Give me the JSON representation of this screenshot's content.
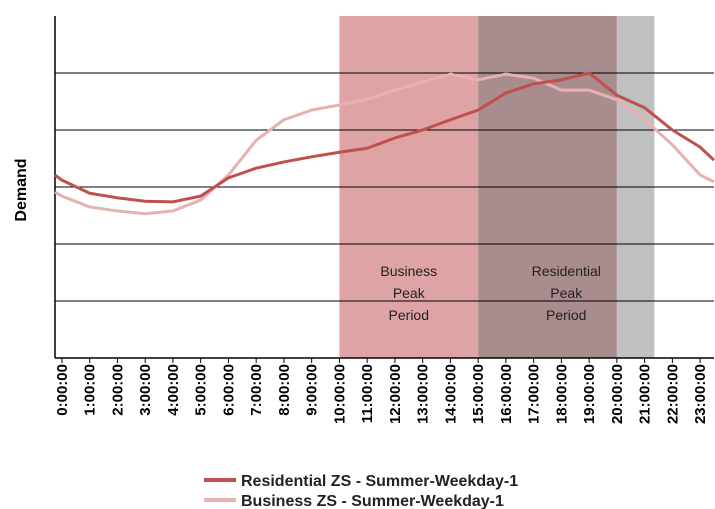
{
  "chart_data": {
    "type": "line",
    "y_label": "Demand",
    "xlim": [
      -0.25,
      23.5
    ],
    "ylim": [
      0,
      6
    ],
    "y_gridlines": [
      1,
      2,
      3,
      4,
      5
    ],
    "grid": true,
    "legend": "bottom",
    "xticks": [
      {
        "value": 0,
        "label": "0:00:00"
      },
      {
        "value": 1,
        "label": "1:00:00"
      },
      {
        "value": 2,
        "label": "2:00:00"
      },
      {
        "value": 3,
        "label": "3:00:00"
      },
      {
        "value": 4,
        "label": "4:00:00"
      },
      {
        "value": 5,
        "label": "5:00:00"
      },
      {
        "value": 6,
        "label": "6:00:00"
      },
      {
        "value": 7,
        "label": "7:00:00"
      },
      {
        "value": 8,
        "label": "8:00:00"
      },
      {
        "value": 9,
        "label": "9:00:00"
      },
      {
        "value": 10,
        "label": "10:00:00"
      },
      {
        "value": 11,
        "label": "11:00:00"
      },
      {
        "value": 12,
        "label": "12:00:00"
      },
      {
        "value": 13,
        "label": "13:00:00"
      },
      {
        "value": 14,
        "label": "14:00:00"
      },
      {
        "value": 15,
        "label": "15:00:00"
      },
      {
        "value": 16,
        "label": "16:00:00"
      },
      {
        "value": 17,
        "label": "17:00:00"
      },
      {
        "value": 18,
        "label": "18:00:00"
      },
      {
        "value": 19,
        "label": "19:00:00"
      },
      {
        "value": 20,
        "label": "20:00:00"
      },
      {
        "value": 21,
        "label": "21:00:00"
      },
      {
        "value": 22,
        "label": "22:00:00"
      },
      {
        "value": 23,
        "label": "23:00:00"
      }
    ],
    "bands": [
      {
        "start": 10,
        "end": 15,
        "color": "#dea3a4",
        "label": [
          "Business",
          "Peak",
          "Period"
        ]
      },
      {
        "start": 15,
        "end": 20,
        "color": "#a98c8d",
        "label": [
          "Residential",
          "Peak",
          "Period"
        ]
      },
      {
        "start": 20,
        "end": 21.35,
        "color": "#c0c0c0"
      }
    ],
    "x": [
      -0.25,
      0,
      1,
      2,
      3,
      4,
      5,
      6,
      7,
      8,
      9,
      10,
      11,
      12,
      13,
      14,
      15,
      16,
      17,
      18,
      19,
      20,
      21,
      22,
      23,
      23.5
    ],
    "series": [
      {
        "name": "Residential ZS - Summer-Weekday-1",
        "color": "#c0504d",
        "values": [
          3.21,
          3.12,
          2.89,
          2.81,
          2.75,
          2.74,
          2.84,
          3.16,
          3.33,
          3.44,
          3.53,
          3.61,
          3.68,
          3.86,
          4.0,
          4.18,
          4.35,
          4.65,
          4.81,
          4.88,
          5.0,
          4.61,
          4.39,
          4.0,
          3.7,
          3.47
        ]
      },
      {
        "name": "Business ZS - Summer-Weekday-1",
        "color": "#e6b1b1",
        "values": [
          2.91,
          2.84,
          2.65,
          2.58,
          2.53,
          2.58,
          2.77,
          3.21,
          3.82,
          4.18,
          4.35,
          4.44,
          4.54,
          4.7,
          4.84,
          4.98,
          4.88,
          4.98,
          4.91,
          4.7,
          4.7,
          4.53,
          4.18,
          3.74,
          3.21,
          3.09
        ]
      }
    ]
  }
}
